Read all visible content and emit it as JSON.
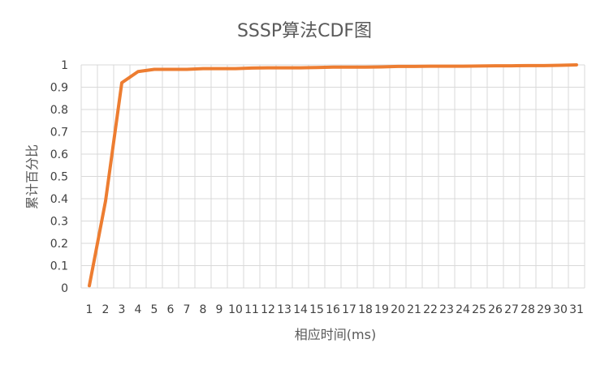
{
  "chart_data": {
    "type": "line",
    "title": "SSSP算法CDF图",
    "xlabel": "相应时间(ms)",
    "ylabel": "累计百分比",
    "categories": [
      "1",
      "2",
      "3",
      "4",
      "5",
      "6",
      "7",
      "8",
      "9",
      "10",
      "11",
      "12",
      "13",
      "14",
      "15",
      "16",
      "17",
      "18",
      "19",
      "20",
      "21",
      "22",
      "23",
      "24",
      "25",
      "26",
      "27",
      "28",
      "29",
      "30",
      "31"
    ],
    "series": [
      {
        "name": "",
        "values": [
          0.01,
          0.39,
          0.92,
          0.97,
          0.98,
          0.98,
          0.98,
          0.983,
          0.983,
          0.983,
          0.986,
          0.987,
          0.987,
          0.987,
          0.988,
          0.99,
          0.99,
          0.99,
          0.991,
          0.993,
          0.993,
          0.994,
          0.994,
          0.994,
          0.995,
          0.996,
          0.996,
          0.997,
          0.997,
          0.998,
          1.0
        ]
      }
    ],
    "yticks": [
      "0",
      "0.1",
      "0.2",
      "0.3",
      "0.4",
      "0.5",
      "0.6",
      "0.7",
      "0.8",
      "0.9",
      "1"
    ],
    "ylim": [
      0,
      1
    ],
    "grid": true,
    "legend": "none",
    "colors": {
      "line": "#ED7D31",
      "grid": "#D9D9D9"
    }
  }
}
